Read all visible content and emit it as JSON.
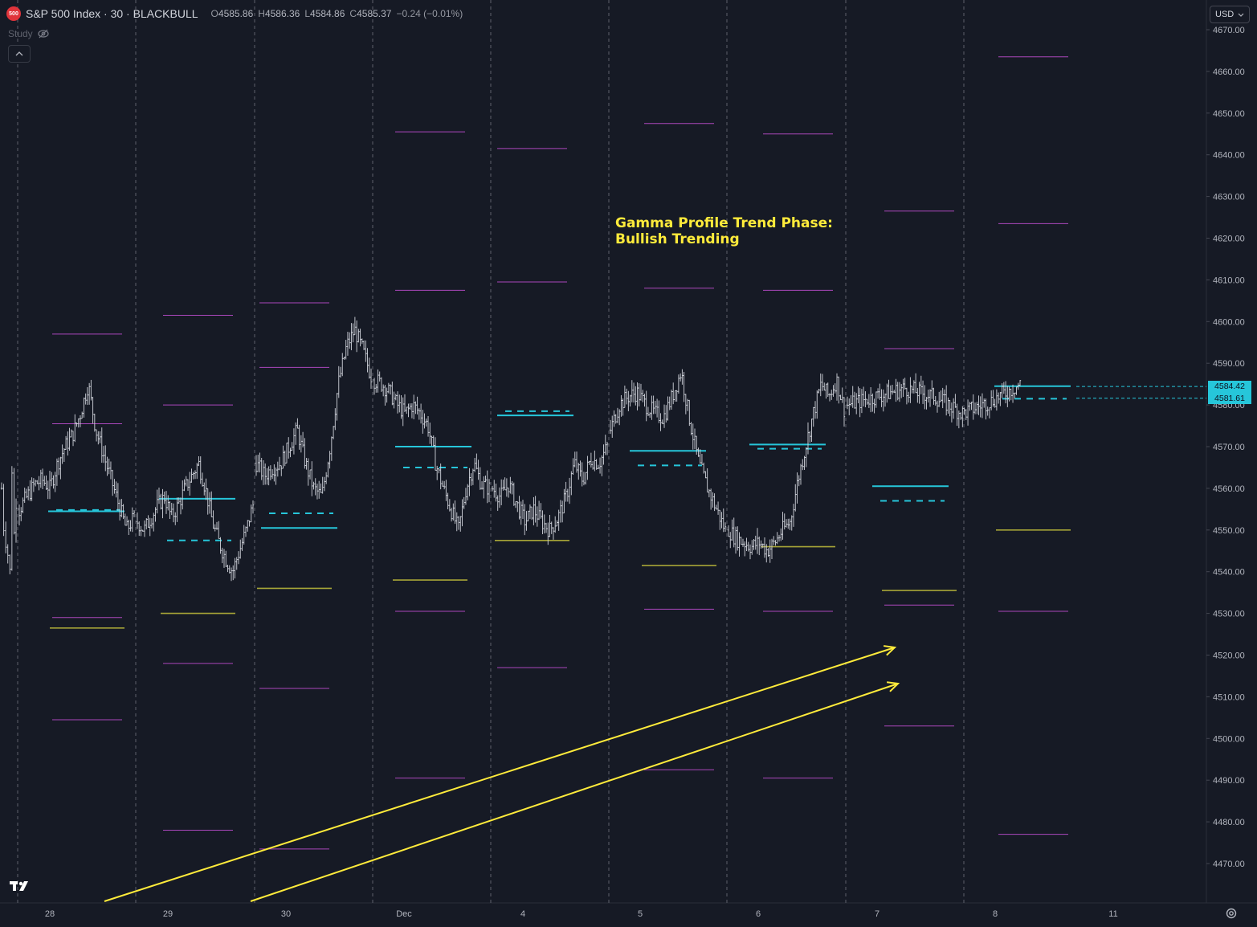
{
  "header": {
    "symbol_badge": "500",
    "title": "S&P 500 Index · 30 · BLACKBULL",
    "open_label": "O",
    "open": "4585.86",
    "high_label": "H",
    "high": "4586.36",
    "low_label": "L",
    "low": "4584.86",
    "close_label": "C",
    "close": "4585.37",
    "change": "−0.24 (−0.01%)"
  },
  "study": {
    "label": "Study",
    "toggle_icon": "eye-off-icon"
  },
  "collapse_icon": "chevron-up-icon",
  "currency": {
    "label": "USD",
    "icon": "chevron-down-icon"
  },
  "annotation": {
    "line1": "Gamma Profile Trend Phase:",
    "line2": "Bullish Trending"
  },
  "logo": "TradingView",
  "colors": {
    "background": "#161a25",
    "candles": "#d1d4dc",
    "cyan": "#26c6da",
    "magenta": "#ab47bc",
    "olive": "#a7a537",
    "yellow": "#ffeb3b",
    "grid_divider": "#5d606b",
    "axis_text": "#b2b5be"
  },
  "chart_data": {
    "type": "candlestick",
    "ylim": [
      4460,
      4672
    ],
    "y_ticks": [
      "4470.00",
      "4480.00",
      "4490.00",
      "4500.00",
      "4510.00",
      "4520.00",
      "4530.00",
      "4540.00",
      "4550.00",
      "4560.00",
      "4570.00",
      "4580.00",
      "4590.00",
      "4600.00",
      "4610.00",
      "4620.00",
      "4630.00",
      "4640.00",
      "4650.00",
      "4660.00",
      "4670.00"
    ],
    "x_labels": [
      "28",
      "29",
      "30",
      "Dec",
      "4",
      "5",
      "6",
      "7",
      "8",
      "11"
    ],
    "session_dividers": true,
    "current_price_labels": [
      {
        "value": 4584.42,
        "label": "4584.42"
      },
      {
        "value": 4581.61,
        "label": "4581.61"
      }
    ],
    "sessions": [
      {
        "day": "28",
        "cyan_solid": 4554.5,
        "cyan_dashed": 4554.8,
        "magenta": [
          4597,
          4575.5,
          4529,
          4504.5
        ],
        "olive": [
          4526.5
        ],
        "path": [
          4560,
          4556,
          4552,
          4550,
          4553,
          4548,
          4545,
          4540,
          4546,
          4542,
          4538,
          4545,
          4551,
          4567,
          4560,
          4550,
          4548,
          4554,
          4557
        ]
      },
      {
        "day": "29",
        "cyan_solid": 4557.5,
        "cyan_dashed": 4547.5,
        "magenta": [
          4601.5,
          4580,
          4518,
          4478
        ],
        "olive": [
          4530
        ],
        "path": [
          4555,
          4558,
          4561,
          4562,
          4560,
          4566,
          4570,
          4573,
          4578,
          4585,
          4574,
          4568,
          4562,
          4556,
          4550,
          4553
        ]
      },
      {
        "day": "30",
        "cyan_solid": 4550.5,
        "cyan_dashed": 4554,
        "magenta": [
          4604.5,
          4589,
          4512,
          4473.5
        ],
        "olive": [
          4536
        ],
        "path": [
          4552,
          4550,
          4553,
          4556,
          4558,
          4553,
          4556,
          4560,
          4563,
          4566,
          4560,
          4552,
          4547,
          4543,
          4540,
          4545,
          4550,
          4556
        ]
      },
      {
        "day": "Dec",
        "cyan_solid": 4570,
        "cyan_dashed": 4565,
        "magenta": [
          4645.5,
          4607.5,
          4530.5,
          4490.5
        ],
        "olive": [
          4538
        ],
        "path": [
          4566,
          4563,
          4565,
          4566,
          4570,
          4574,
          4566,
          4560,
          4558,
          4570,
          4585,
          4594,
          4598,
          4593,
          4587
        ]
      },
      {
        "day": "4",
        "cyan_solid": 4577.5,
        "cyan_dashed": 4578.5,
        "magenta": [
          4641.5,
          4609.5,
          4517
        ],
        "olive": [
          4547.5
        ],
        "path": [
          4586,
          4585,
          4583,
          4580,
          4578,
          4580,
          4578,
          4575,
          4566,
          4560,
          4555,
          4550,
          4560,
          4566,
          4561,
          4560
        ]
      },
      {
        "day": "5",
        "cyan_solid": 4569,
        "cyan_dashed": 4565.5,
        "magenta": [
          4647.5,
          4608,
          4531,
          4492.5
        ],
        "olive": [
          4541.5
        ],
        "path": [
          4560,
          4558,
          4561,
          4556,
          4552,
          4555,
          4552,
          4550,
          4553,
          4558,
          4566,
          4562,
          4567,
          4566,
          4570
        ]
      },
      {
        "day": "6",
        "cyan_solid": 4570.5,
        "cyan_dashed": 4569.5,
        "magenta": [
          4645,
          4607.5,
          4530.5,
          4490.5
        ],
        "olive": [
          4546
        ],
        "path": [
          4574,
          4580,
          4582,
          4583,
          4580,
          4578,
          4577,
          4582,
          4588,
          4576,
          4566,
          4560,
          4555,
          4550
        ]
      },
      {
        "day": "7",
        "cyan_solid": 4560.5,
        "cyan_dashed": 4557,
        "magenta": [
          4626.5,
          4593.5,
          4532,
          4503
        ],
        "olive": [
          4535.5
        ],
        "path": [
          4550,
          4548,
          4547,
          4546,
          4547,
          4545,
          4547,
          4550,
          4552,
          4562,
          4570,
          4578,
          4585,
          4582,
          4586,
          4579
        ]
      },
      {
        "day": "8",
        "cyan_solid": 4584.5,
        "cyan_dashed": 4581.5,
        "magenta": [
          4663.5,
          4623.5,
          4530.5,
          4477
        ],
        "olive": [
          4550
        ],
        "path": [
          4580,
          4582,
          4584,
          4582,
          4578,
          4581,
          4585
        ]
      }
    ],
    "trend_arrows": [
      "Bullish Trending",
      "Bullish Trending"
    ]
  }
}
